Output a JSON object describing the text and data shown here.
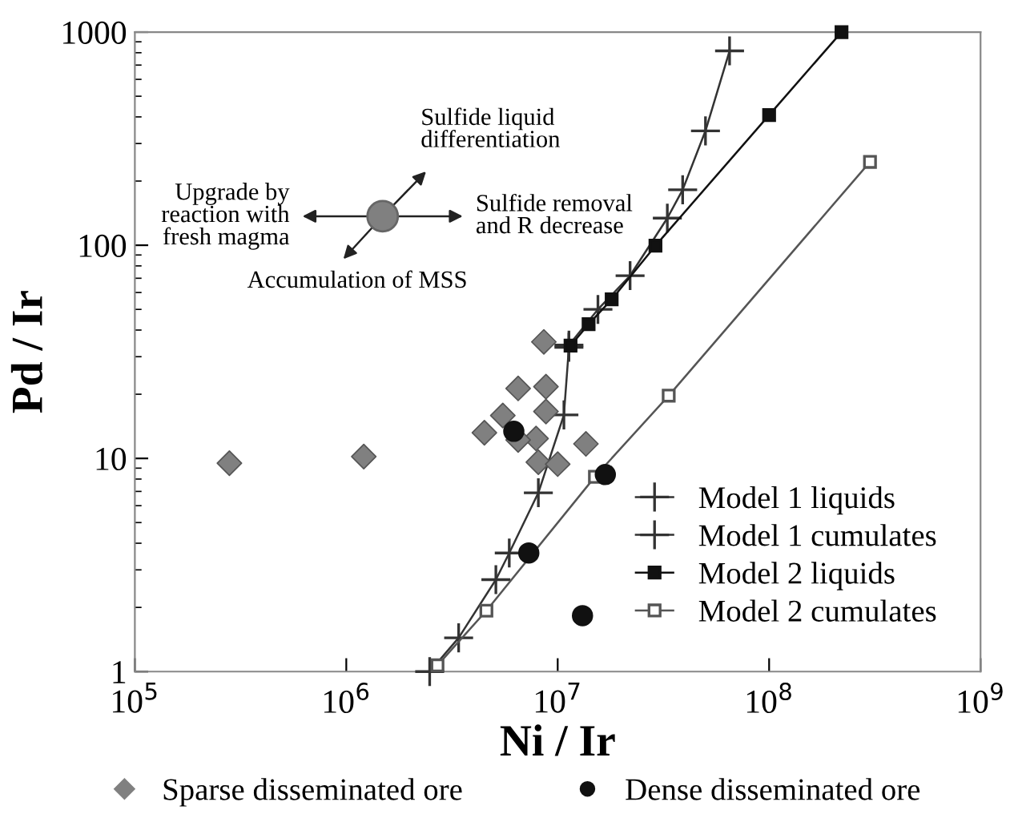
{
  "chart_data": {
    "type": "scatter",
    "xlabel": "Ni / Ir",
    "ylabel": "Pd / Ir",
    "log": "xy",
    "xlim": [
      100000,
      1000000000
    ],
    "ylim": [
      1,
      1000
    ],
    "xticks": [
      {
        "value": 100000,
        "label": "10$^{5}$"
      },
      {
        "value": 1000000,
        "label": "10$^{6}$"
      },
      {
        "value": 10000000,
        "label": "10$^{7}$"
      },
      {
        "value": 100000000,
        "label": "10$^{8}$"
      },
      {
        "value": 1000000000,
        "label": "10$^{9}$"
      }
    ],
    "yticks": [
      1,
      10,
      100,
      1000
    ],
    "grid": false,
    "legend": "bottom right",
    "annotations": [
      "Sulfide liquid\ndifferentiation",
      "Upgrade by\nreaction with\nfresh magma",
      "Sulfide removal\nand R decrease",
      "Accumulation of MSS"
    ],
    "series": [
      {
        "name": "Model 1 liquids",
        "type": "line",
        "marker": "cross",
        "color": "#333333",
        "x": [
          11300000,
          15500000,
          22000000,
          33000000,
          39000000,
          50000000,
          65000000
        ],
        "values": [
          34,
          50,
          72,
          134,
          182,
          344,
          816
        ]
      },
      {
        "name": "Model 1 cumulates",
        "type": "line",
        "marker": "cross",
        "color": "#333333",
        "x": [
          2480000,
          3400000,
          5100000,
          5900000,
          8100000,
          10700000,
          11300000
        ],
        "values": [
          1.0,
          1.44,
          2.7,
          3.6,
          6.9,
          16.0,
          33.2
        ]
      },
      {
        "name": "Model 2 liquids",
        "type": "line",
        "marker": "square",
        "color": "#111111",
        "x": [
          11500000,
          14000000,
          18000000,
          29000000,
          100000000,
          220000000
        ],
        "values": [
          33.8,
          42.6,
          55.7,
          99.5,
          408,
          1000
        ]
      },
      {
        "name": "Model 2 cumulates",
        "type": "line",
        "marker": "square",
        "color": "#555555",
        "x": [
          2700000,
          4600000,
          15000000,
          33500000,
          300000000
        ],
        "values": [
          1.07,
          1.93,
          8.2,
          19.7,
          246
        ]
      },
      {
        "name": "Sparse disseminated ore",
        "marker": "diamond",
        "color": "#808080",
        "x": [
          280000,
          1210000,
          8600000,
          6500000,
          8800000,
          5500000,
          8800000,
          4500000,
          7900000,
          6500000,
          13600000,
          8100000,
          10000000
        ],
        "values": [
          9.5,
          10.2,
          35.2,
          21.3,
          21.7,
          15.9,
          16.6,
          13.2,
          12.4,
          12.2,
          11.7,
          9.6,
          9.4
        ]
      },
      {
        "name": "Dense disseminated ore",
        "marker": "circle",
        "color": "#111111",
        "x": [
          6200000,
          16800000,
          7300000,
          13100000
        ],
        "values": [
          13.4,
          8.4,
          3.6,
          1.83
        ]
      }
    ]
  }
}
